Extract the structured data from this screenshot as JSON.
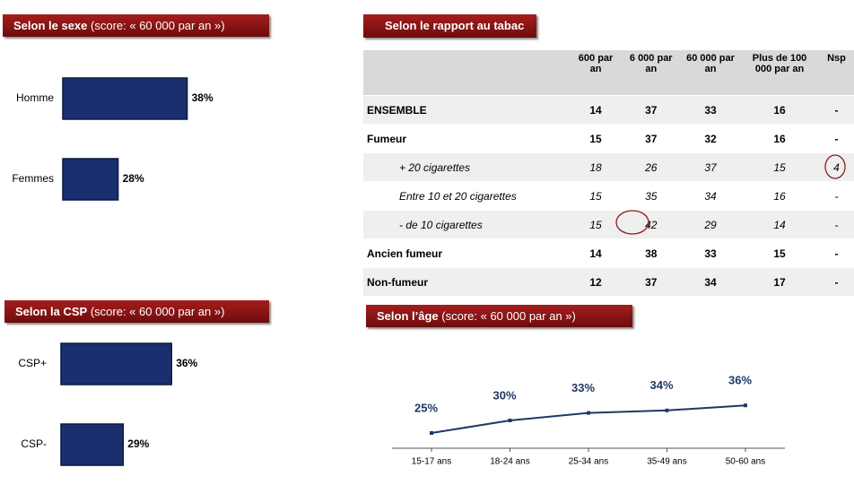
{
  "chart_data": [
    {
      "type": "bar",
      "title": "Selon le sexe",
      "subtitle": "(score: « 60 000 par an »)",
      "categories": [
        "Homme",
        "Femmes"
      ],
      "values": [
        38,
        28
      ],
      "value_labels": [
        "38%",
        "28%"
      ],
      "color": "#1a2f6e"
    },
    {
      "type": "bar",
      "title": "Selon la CSP",
      "subtitle": "(score: « 60 000 par an »)",
      "categories": [
        "CSP+",
        "CSP-"
      ],
      "values": [
        36,
        29
      ],
      "value_labels": [
        "36%",
        "29%"
      ],
      "color": "#1a2f6e"
    },
    {
      "type": "line",
      "title": "Selon l’âge",
      "subtitle": "(score: « 60 000 par an »)",
      "categories": [
        "15-17 ans",
        "18-24 ans",
        "25-34 ans",
        "35-49 ans",
        "50-60 ans"
      ],
      "values": [
        25,
        30,
        33,
        34,
        36
      ],
      "value_labels": [
        "25%",
        "30%",
        "33%",
        "34%",
        "36%"
      ],
      "color": "#1f3864"
    }
  ],
  "table": {
    "title": "Selon le rapport au tabac",
    "header": [
      "600 par an",
      "6 000 par an",
      "60 000 par an",
      "Plus de 100 000 par an",
      "Nsp"
    ],
    "rows": [
      [
        "ENSEMBLE",
        14,
        37,
        33,
        16,
        "-"
      ],
      [
        "Fumeur",
        15,
        37,
        32,
        16,
        "-"
      ],
      [
        "+ 20 cigarettes",
        18,
        26,
        37,
        15,
        4
      ],
      [
        "Entre 10 et 20 cigarettes",
        15,
        35,
        34,
        16,
        "-"
      ],
      [
        "- de 10 cigarettes",
        15,
        42,
        29,
        14,
        "-"
      ],
      [
        "Ancien fumeur",
        14,
        38,
        33,
        15,
        "-"
      ],
      [
        "Non-fumeur",
        12,
        37,
        34,
        17,
        "-"
      ]
    ]
  }
}
